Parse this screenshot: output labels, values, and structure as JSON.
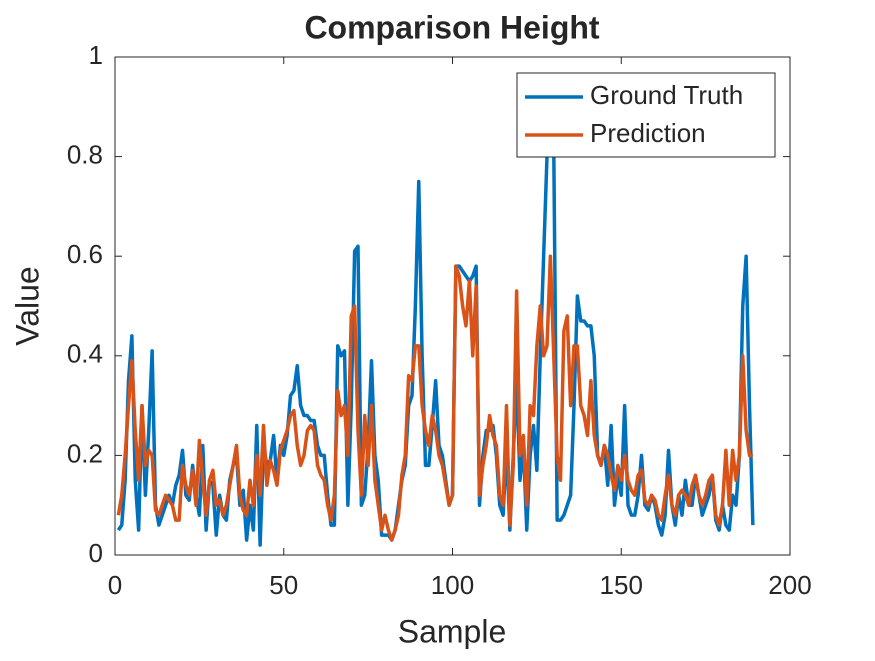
{
  "chart_data": {
    "type": "line",
    "title": "Comparison Height",
    "xlabel": "Sample",
    "ylabel": "Value",
    "xlim": [
      0,
      200
    ],
    "xticks": [
      0,
      50,
      100,
      150,
      200
    ],
    "ylim": [
      0,
      1
    ],
    "yticks": [
      0,
      0.2,
      0.4,
      0.6,
      0.8,
      1
    ],
    "legend": "upper right",
    "x": [
      1,
      2,
      3,
      4,
      5,
      6,
      7,
      8,
      9,
      10,
      11,
      12,
      13,
      14,
      15,
      16,
      17,
      18,
      19,
      20,
      21,
      22,
      23,
      24,
      25,
      26,
      27,
      28,
      29,
      30,
      31,
      32,
      33,
      34,
      35,
      36,
      37,
      38,
      39,
      40,
      41,
      42,
      43,
      44,
      45,
      46,
      47,
      48,
      49,
      50,
      51,
      52,
      53,
      54,
      55,
      56,
      57,
      58,
      59,
      60,
      61,
      62,
      63,
      64,
      65,
      66,
      67,
      68,
      69,
      70,
      71,
      72,
      73,
      74,
      75,
      76,
      77,
      78,
      79,
      80,
      81,
      82,
      83,
      84,
      85,
      86,
      87,
      88,
      89,
      90,
      91,
      92,
      93,
      94,
      95,
      96,
      97,
      98,
      99,
      100,
      101,
      102,
      103,
      104,
      105,
      106,
      107,
      108,
      109,
      110,
      111,
      112,
      113,
      114,
      115,
      116,
      117,
      118,
      119,
      120,
      121,
      122,
      123,
      124,
      125,
      126,
      127,
      128,
      129,
      130,
      131,
      132,
      133,
      134,
      135,
      136,
      137,
      138,
      139,
      140,
      141,
      142,
      143,
      144,
      145,
      146,
      147,
      148,
      149,
      150,
      151,
      152,
      153,
      154,
      155,
      156,
      157,
      158,
      159,
      160,
      161,
      162,
      163,
      164,
      165,
      166,
      167,
      168,
      169,
      170,
      171,
      172,
      173,
      174,
      175,
      176,
      177,
      178,
      179,
      180,
      181,
      182,
      183,
      184,
      185,
      186,
      187,
      188,
      189
    ],
    "series": [
      {
        "name": "Ground Truth",
        "color": "#0072bd",
        "values": [
          0.05,
          0.06,
          0.15,
          0.35,
          0.44,
          0.15,
          0.05,
          0.3,
          0.12,
          0.25,
          0.41,
          0.1,
          0.06,
          0.08,
          0.1,
          0.12,
          0.1,
          0.14,
          0.16,
          0.21,
          0.12,
          0.11,
          0.18,
          0.12,
          0.08,
          0.22,
          0.05,
          0.15,
          0.14,
          0.04,
          0.12,
          0.08,
          0.07,
          0.15,
          0.18,
          0.2,
          0.1,
          0.13,
          0.03,
          0.1,
          0.05,
          0.26,
          0.02,
          0.22,
          0.18,
          0.19,
          0.24,
          0.15,
          0.22,
          0.2,
          0.24,
          0.32,
          0.33,
          0.38,
          0.3,
          0.28,
          0.28,
          0.27,
          0.27,
          0.22,
          0.2,
          0.2,
          0.12,
          0.06,
          0.06,
          0.42,
          0.4,
          0.41,
          0.1,
          0.3,
          0.61,
          0.62,
          0.1,
          0.12,
          0.22,
          0.39,
          0.2,
          0.15,
          0.04,
          0.04,
          0.04,
          0.03,
          0.05,
          0.1,
          0.15,
          0.18,
          0.3,
          0.32,
          0.5,
          0.75,
          0.4,
          0.18,
          0.18,
          0.26,
          0.35,
          0.22,
          0.2,
          0.15,
          0.1,
          0.12,
          0.58,
          0.58,
          0.57,
          0.56,
          0.55,
          0.56,
          0.58,
          0.1,
          0.2,
          0.25,
          0.25,
          0.26,
          0.2,
          0.1,
          0.08,
          0.22,
          0.05,
          0.2,
          0.35,
          0.15,
          0.22,
          0.05,
          0.2,
          0.26,
          0.17,
          0.4,
          0.6,
          0.8,
          0.85,
          0.82,
          0.07,
          0.07,
          0.08,
          0.1,
          0.12,
          0.3,
          0.52,
          0.47,
          0.47,
          0.46,
          0.46,
          0.4,
          0.2,
          0.18,
          0.22,
          0.14,
          0.26,
          0.1,
          0.16,
          0.12,
          0.3,
          0.1,
          0.08,
          0.08,
          0.12,
          0.2,
          0.1,
          0.09,
          0.12,
          0.1,
          0.06,
          0.04,
          0.08,
          0.21,
          0.1,
          0.06,
          0.12,
          0.08,
          0.15,
          0.1,
          0.1,
          0.16,
          0.12,
          0.08,
          0.1,
          0.12,
          0.16,
          0.07,
          0.05,
          0.1,
          0.06,
          0.05,
          0.12,
          0.1,
          0.2,
          0.5,
          0.6,
          0.3,
          0.06
        ]
      },
      {
        "name": "Prediction",
        "color": "#d95319",
        "values": [
          0.08,
          0.12,
          0.2,
          0.3,
          0.39,
          0.25,
          0.15,
          0.3,
          0.18,
          0.21,
          0.2,
          0.09,
          0.08,
          0.1,
          0.12,
          0.11,
          0.1,
          0.07,
          0.07,
          0.18,
          0.14,
          0.12,
          0.17,
          0.1,
          0.23,
          0.15,
          0.08,
          0.15,
          0.17,
          0.1,
          0.11,
          0.08,
          0.1,
          0.14,
          0.18,
          0.22,
          0.12,
          0.09,
          0.08,
          0.15,
          0.1,
          0.2,
          0.12,
          0.26,
          0.14,
          0.19,
          0.17,
          0.14,
          0.21,
          0.23,
          0.25,
          0.28,
          0.29,
          0.22,
          0.18,
          0.2,
          0.25,
          0.26,
          0.25,
          0.18,
          0.16,
          0.15,
          0.1,
          0.07,
          0.12,
          0.33,
          0.28,
          0.3,
          0.2,
          0.48,
          0.5,
          0.25,
          0.12,
          0.28,
          0.18,
          0.3,
          0.15,
          0.1,
          0.05,
          0.08,
          0.05,
          0.03,
          0.05,
          0.08,
          0.16,
          0.2,
          0.36,
          0.35,
          0.42,
          0.42,
          0.3,
          0.25,
          0.22,
          0.28,
          0.25,
          0.2,
          0.18,
          0.14,
          0.1,
          0.12,
          0.58,
          0.56,
          0.5,
          0.46,
          0.55,
          0.4,
          0.54,
          0.12,
          0.18,
          0.22,
          0.28,
          0.24,
          0.22,
          0.12,
          0.1,
          0.3,
          0.06,
          0.18,
          0.53,
          0.2,
          0.24,
          0.1,
          0.3,
          0.28,
          0.42,
          0.5,
          0.4,
          0.42,
          0.6,
          0.4,
          0.2,
          0.15,
          0.45,
          0.48,
          0.3,
          0.42,
          0.42,
          0.3,
          0.28,
          0.24,
          0.35,
          0.24,
          0.2,
          0.18,
          0.22,
          0.2,
          0.16,
          0.13,
          0.18,
          0.15,
          0.2,
          0.15,
          0.13,
          0.12,
          0.16,
          0.17,
          0.11,
          0.1,
          0.12,
          0.11,
          0.08,
          0.07,
          0.12,
          0.16,
          0.1,
          0.08,
          0.12,
          0.13,
          0.12,
          0.1,
          0.14,
          0.16,
          0.12,
          0.1,
          0.12,
          0.15,
          0.16,
          0.08,
          0.06,
          0.1,
          0.21,
          0.1,
          0.21,
          0.15,
          0.2,
          0.4,
          0.25,
          0.2,
          0.2
        ]
      }
    ]
  }
}
